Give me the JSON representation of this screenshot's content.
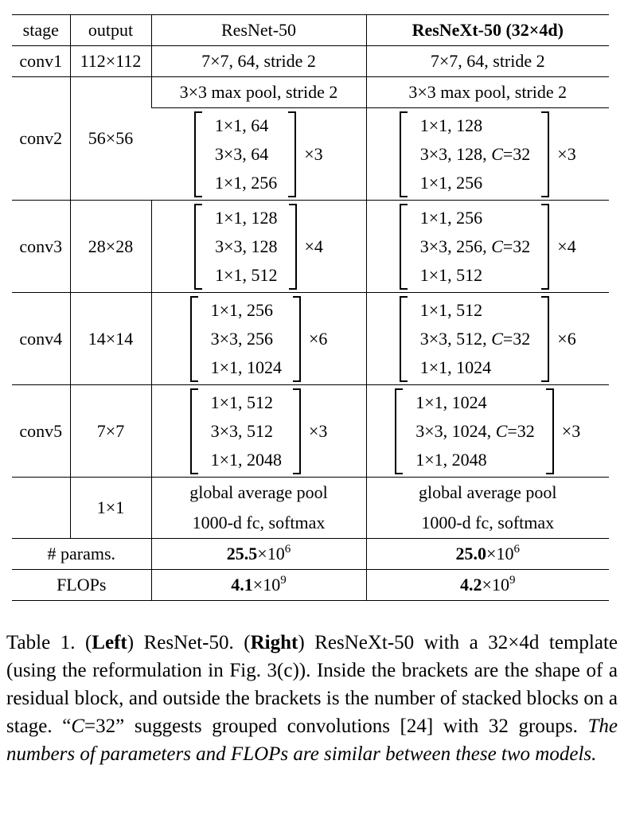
{
  "table": {
    "header": [
      "stage",
      "output",
      "ResNet-50",
      "ResNeXt-50 (32×4d)"
    ],
    "conv1": {
      "stage": "conv1",
      "output": "112×112",
      "resnet": "7×7, 64, stride 2",
      "resnext": "7×7, 64, stride 2"
    },
    "pool_row": {
      "resnet": "3×3 max pool, stride 2",
      "resnext": "3×3 max pool, stride 2"
    },
    "stages": [
      {
        "stage": "conv2",
        "output": "56×56",
        "resnet": {
          "lines": [
            "1×1, 64",
            "3×3, 64",
            "1×1, 256"
          ],
          "repeat": "×3"
        },
        "resnext": {
          "lines": [
            "1×1, 128",
            {
              "text": "3×3, 128, ",
              "var": "C",
              "eq": "=32"
            },
            "1×1, 256"
          ],
          "repeat": "×3"
        }
      },
      {
        "stage": "conv3",
        "output": "28×28",
        "resnet": {
          "lines": [
            "1×1, 128",
            "3×3, 128",
            "1×1, 512"
          ],
          "repeat": "×4"
        },
        "resnext": {
          "lines": [
            "1×1, 256",
            {
              "text": "3×3, 256, ",
              "var": "C",
              "eq": "=32"
            },
            "1×1, 512"
          ],
          "repeat": "×4"
        }
      },
      {
        "stage": "conv4",
        "output": "14×14",
        "resnet": {
          "lines": [
            "1×1, 256",
            "3×3, 256",
            "1×1, 1024"
          ],
          "repeat": "×6"
        },
        "resnext": {
          "lines": [
            "1×1, 512",
            {
              "text": "3×3, 512, ",
              "var": "C",
              "eq": "=32"
            },
            "1×1, 1024"
          ],
          "repeat": "×6"
        }
      },
      {
        "stage": "conv5",
        "output": "7×7",
        "resnet": {
          "lines": [
            "1×1, 512",
            "3×3, 512",
            "1×1, 2048"
          ],
          "repeat": "×3"
        },
        "resnext": {
          "lines": [
            "1×1, 1024",
            {
              "text": "3×3, 1024, ",
              "var": "C",
              "eq": "=32"
            },
            "1×1, 2048"
          ],
          "repeat": "×3"
        }
      }
    ],
    "head": {
      "output": "1×1",
      "resnet": [
        "global average pool",
        "1000-d fc, softmax"
      ],
      "resnext": [
        "global average pool",
        "1000-d fc, softmax"
      ]
    },
    "params": {
      "label": "# params.",
      "resnet": {
        "mantissa": "25.5",
        "base": "×10",
        "exp": "6"
      },
      "resnext": {
        "mantissa": "25.0",
        "base": "×10",
        "exp": "6"
      }
    },
    "flops": {
      "label": "FLOPs",
      "resnet": {
        "mantissa": "4.1",
        "base": "×10",
        "exp": "9"
      },
      "resnext": {
        "mantissa": "4.2",
        "base": "×10",
        "exp": "9"
      }
    }
  },
  "caption": [
    {
      "text": "Table 1. (",
      "style": "normal"
    },
    {
      "text": "Left",
      "style": "bold"
    },
    {
      "text": ") ResNet-50.  (",
      "style": "normal"
    },
    {
      "text": "Right",
      "style": "bold"
    },
    {
      "text": ") ResNeXt-50 with a 32×4d template (using the reformulation in Fig. 3(c)). Inside the brackets are the shape of a residual block, and outside the brackets is the number of stacked blocks on a stage.  “",
      "style": "normal"
    },
    {
      "text": "C",
      "style": "italic"
    },
    {
      "text": "=32” suggests grouped convolutions [24] with 32 groups. ",
      "style": "normal"
    },
    {
      "text": "The numbers of parameters and FLOPs are similar between these two models.",
      "style": "italic"
    }
  ]
}
